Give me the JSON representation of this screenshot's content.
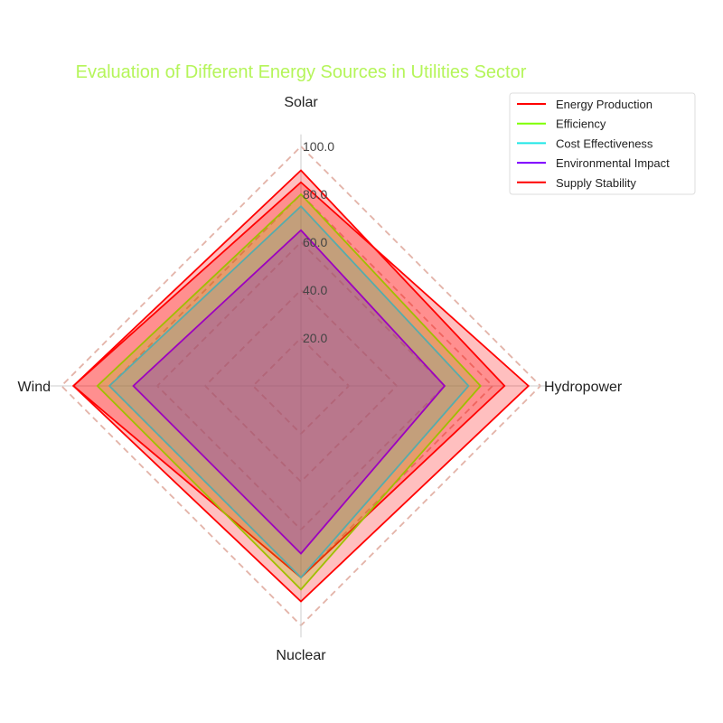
{
  "chart_data": {
    "type": "radar",
    "title": "Evaluation of Different Energy Sources in Utilities Sector",
    "title_color": "#b5f55a",
    "categories": [
      "Solar",
      "Hydropower",
      "Nuclear",
      "Wind"
    ],
    "rlim": [
      0,
      100
    ],
    "r_ticks": [
      "20.0",
      "40.0",
      "60.0",
      "80.0",
      "100.0"
    ],
    "grid_color": "#e3b3a8",
    "legend_placement": "top-right",
    "series": [
      {
        "name": "Energy Production",
        "values": [
          90,
          85,
          80,
          95
        ],
        "color": "#ff0000",
        "fill": "#ff0000"
      },
      {
        "name": "Efficiency",
        "values": [
          80,
          75,
          85,
          85
        ],
        "color": "#7fff00",
        "fill": "#7fff00"
      },
      {
        "name": "Cost Effectiveness",
        "values": [
          75,
          70,
          80,
          80
        ],
        "color": "#1ee6e6",
        "fill": "#1ee6e6"
      },
      {
        "name": "Environmental Impact",
        "values": [
          65,
          60,
          70,
          70
        ],
        "color": "#7b00ff",
        "fill": "#7b00ff"
      },
      {
        "name": "Supply Stability",
        "values": [
          85,
          95,
          90,
          95
        ],
        "color": "#ff0000",
        "fill": "#ff0000"
      }
    ]
  }
}
